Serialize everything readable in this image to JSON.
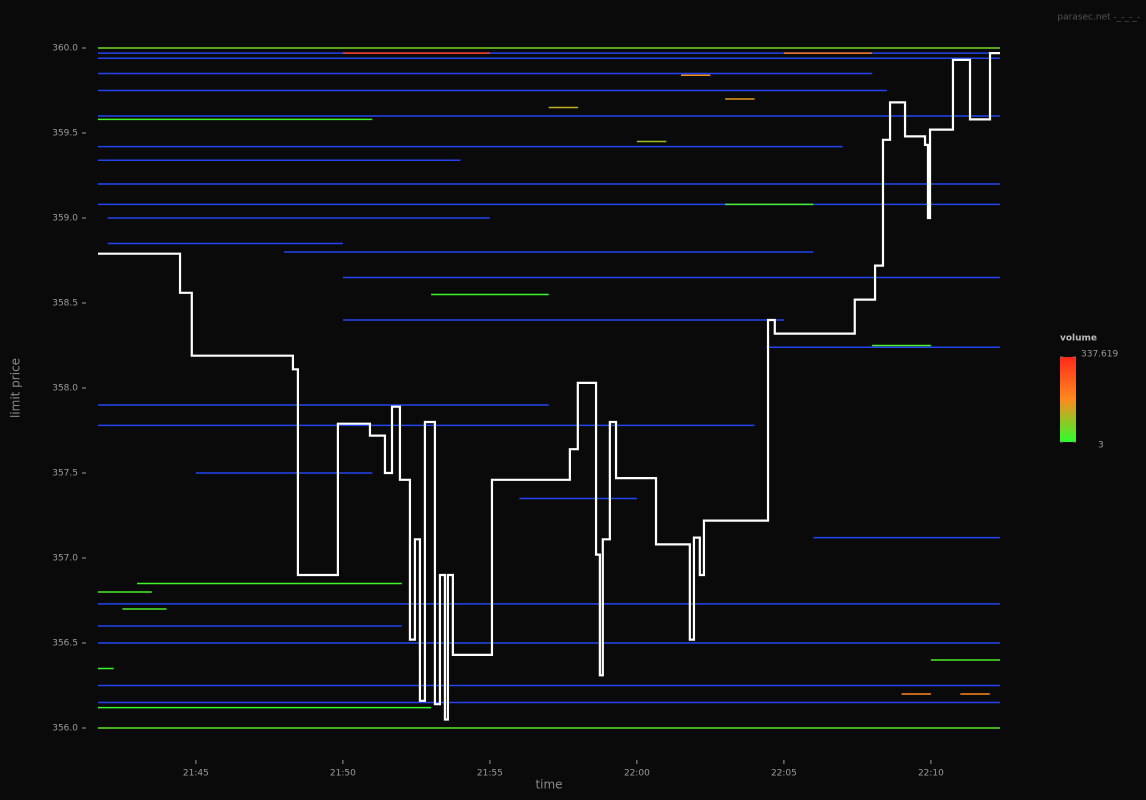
{
  "chart_data": {
    "type": "orderbook",
    "credit": "parasec.net -_-_-_-",
    "x_label": "time",
    "y_label": "limit price",
    "xlim": [
      1301.67,
      1332.35
    ],
    "ylim": [
      356,
      360
    ],
    "xticks": [
      {
        "value": 1305,
        "label": "21:45"
      },
      {
        "value": 1310,
        "label": "21:50"
      },
      {
        "value": 1315,
        "label": "21:55"
      },
      {
        "value": 1320,
        "label": "22:00"
      },
      {
        "value": 1325,
        "label": "22:05"
      },
      {
        "value": 1330,
        "label": "22:10"
      }
    ],
    "yticks": [
      {
        "value": 356,
        "label": "356.0"
      },
      356.5,
      {
        "value": 357,
        "label": "357.0"
      },
      357.5,
      {
        "value": 358,
        "label": "358.0"
      },
      358.5,
      {
        "value": 359,
        "label": "359.0"
      },
      359.5,
      {
        "value": 360,
        "label": "360.0"
      }
    ],
    "legend_title": "volume",
    "volume_range": [
      3,
      337.619
    ],
    "colorscale": [
      "#2cff2c",
      "#ff8a1e",
      "#ff2a1a"
    ],
    "below_color": "#2244ee",
    "orders": {
      "price": [
        360.0,
        359.97,
        359.94,
        359.85,
        359.75,
        359.6,
        359.58,
        359.42,
        359.34,
        359.2,
        359.08,
        359.0,
        358.8,
        358.65,
        358.55,
        358.4,
        358.24,
        357.9,
        357.78,
        357.5,
        357.35,
        357.12,
        356.85,
        356.73,
        356.6,
        356.5,
        356.35,
        356.25,
        356.15,
        356.12,
        356.0,
        359.97,
        359.97,
        359.7,
        359.65,
        359.08,
        358.25,
        356.2,
        356.2,
        356.4,
        359.45,
        359.84,
        356.8,
        356.7,
        358.85
      ],
      "start": [
        1301.67,
        1301.67,
        1301.67,
        1301.67,
        1301.67,
        1301.67,
        1301.67,
        1301.67,
        1301.67,
        1301.67,
        1301.67,
        1302.0,
        1308.0,
        1310.0,
        1313.0,
        1310.0,
        1324.4,
        1301.67,
        1301.67,
        1305.0,
        1316.0,
        1326.0,
        1303.0,
        1301.67,
        1301.67,
        1301.67,
        1301.67,
        1301.67,
        1301.67,
        1301.67,
        1301.67,
        1310.0,
        1325.0,
        1323.0,
        1317.0,
        1323.0,
        1328.0,
        1329.0,
        1331.0,
        1330.0,
        1320.0,
        1321.5,
        1301.67,
        1302.5,
        1302.0
      ],
      "end": [
        1332.35,
        1332.35,
        1332.35,
        1328.0,
        1328.5,
        1332.35,
        1311.0,
        1327.0,
        1314.0,
        1332.35,
        1332.35,
        1315.0,
        1326.0,
        1332.35,
        1317.0,
        1325.0,
        1332.35,
        1317.0,
        1324.0,
        1311.0,
        1320.0,
        1332.35,
        1312.0,
        1332.35,
        1312.0,
        1332.35,
        1302.2,
        1332.35,
        1332.35,
        1313.0,
        1332.35,
        1315.0,
        1328.0,
        1324.0,
        1318.0,
        1326.0,
        1330.0,
        1330.0,
        1332.0,
        1332.35,
        1321.0,
        1322.5,
        1303.5,
        1304.0,
        1310.0
      ],
      "volume": [
        60,
        1,
        2,
        1,
        1,
        1,
        20,
        1,
        2,
        1,
        1,
        2,
        2,
        1,
        15,
        1,
        1,
        1,
        1,
        1,
        2,
        1,
        20,
        1,
        1,
        1,
        12,
        1,
        1,
        12,
        40,
        300,
        200,
        150,
        120,
        25,
        30,
        180,
        170,
        30,
        90,
        160,
        25,
        30,
        2
      ]
    },
    "mid": {
      "color": "#ffffff",
      "line_shape": "hv",
      "x": [
        1301.67,
        1304.46,
        1304.86,
        1308.3,
        1308.47,
        1309.83,
        1310.92,
        1311.43,
        1311.67,
        1311.94,
        1312.28,
        1312.45,
        1312.62,
        1312.79,
        1313.13,
        1313.3,
        1313.47,
        1313.57,
        1313.74,
        1315.07,
        1317.72,
        1317.99,
        1318.61,
        1318.74,
        1318.84,
        1319.08,
        1319.29,
        1320.65,
        1321.8,
        1321.94,
        1322.14,
        1322.28,
        1324.46,
        1324.69,
        1327.41,
        1328.1,
        1328.37,
        1328.61,
        1329.12,
        1329.8,
        1329.9,
        1329.97,
        1330.75,
        1331.33,
        1332.01,
        1332.35
      ],
      "values": [
        358.79,
        358.56,
        358.19,
        358.11,
        356.9,
        357.79,
        357.72,
        357.5,
        357.89,
        357.46,
        356.52,
        357.11,
        356.16,
        357.8,
        356.14,
        356.9,
        356.05,
        356.9,
        356.43,
        357.46,
        357.64,
        358.03,
        357.02,
        356.31,
        357.11,
        357.8,
        357.47,
        357.08,
        356.52,
        357.12,
        356.9,
        357.22,
        358.4,
        358.32,
        358.52,
        358.72,
        359.46,
        359.68,
        359.48,
        359.43,
        359.0,
        359.52,
        359.93,
        359.58,
        359.97,
        359.97
      ]
    }
  }
}
